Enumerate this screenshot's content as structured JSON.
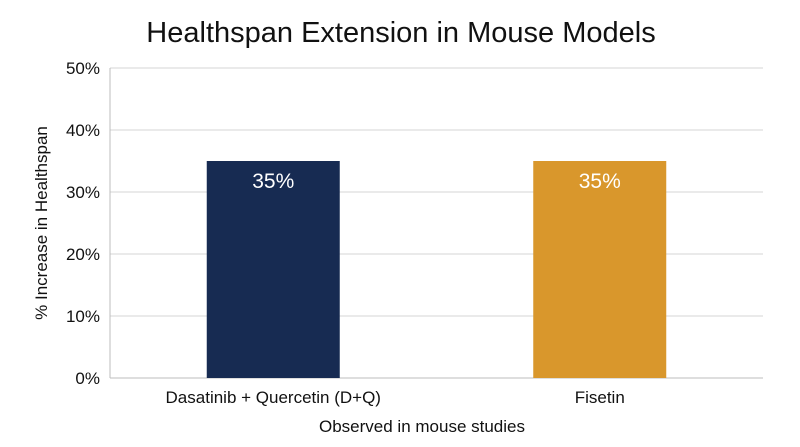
{
  "chart_data": {
    "type": "bar",
    "title": "Healthspan Extension in Mouse Models",
    "xlabel": "Observed in mouse studies",
    "ylabel": "% Increase in Healthspan",
    "categories": [
      "Dasatinib + Quercetin (D+Q)",
      "Fisetin"
    ],
    "values": [
      35,
      35
    ],
    "data_labels": [
      "35%",
      "35%"
    ],
    "bar_colors": [
      "#172b52",
      "#d9972c"
    ],
    "ylim": [
      0,
      50
    ],
    "y_ticks": [
      0,
      10,
      20,
      30,
      40,
      50
    ],
    "y_tick_labels": [
      "0%",
      "10%",
      "20%",
      "30%",
      "40%",
      "50%"
    ],
    "grid": true,
    "legend": "none"
  }
}
